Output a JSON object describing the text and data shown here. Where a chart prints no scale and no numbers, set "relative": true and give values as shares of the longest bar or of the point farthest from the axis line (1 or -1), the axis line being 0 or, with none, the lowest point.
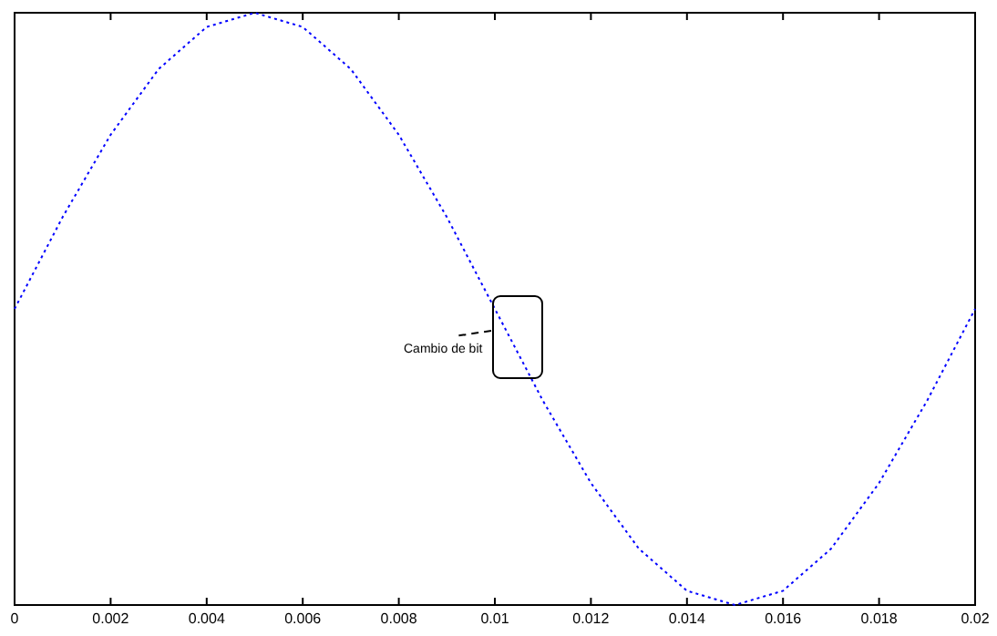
{
  "chart_data": {
    "type": "line",
    "relative": true,
    "x": [
      0,
      0.001,
      0.002,
      0.003,
      0.004,
      0.005,
      0.006,
      0.007,
      0.008,
      0.009,
      0.01,
      0.011,
      0.012,
      0.013,
      0.014,
      0.015,
      0.016,
      0.017,
      0.018,
      0.019,
      0.02
    ],
    "series": [
      {
        "color": "#0000ff",
        "values": [
          0.5,
          0.655,
          0.794,
          0.905,
          0.976,
          1,
          0.976,
          0.905,
          0.794,
          0.655,
          0.5,
          0.345,
          0.206,
          0.095,
          0.024,
          0,
          0.024,
          0.095,
          0.206,
          0.345,
          0.5
        ]
      }
    ],
    "xlim": [
      0,
      0.02
    ],
    "xticks": [
      0,
      0.002,
      0.004,
      0.006,
      0.008,
      0.01,
      0.012,
      0.014,
      0.016,
      0.018,
      0.02
    ],
    "line_style": "dotted",
    "grid": false,
    "annotations": [
      {
        "text": "Cambio de bit",
        "x": 0.01,
        "y": 0.5
      }
    ]
  }
}
